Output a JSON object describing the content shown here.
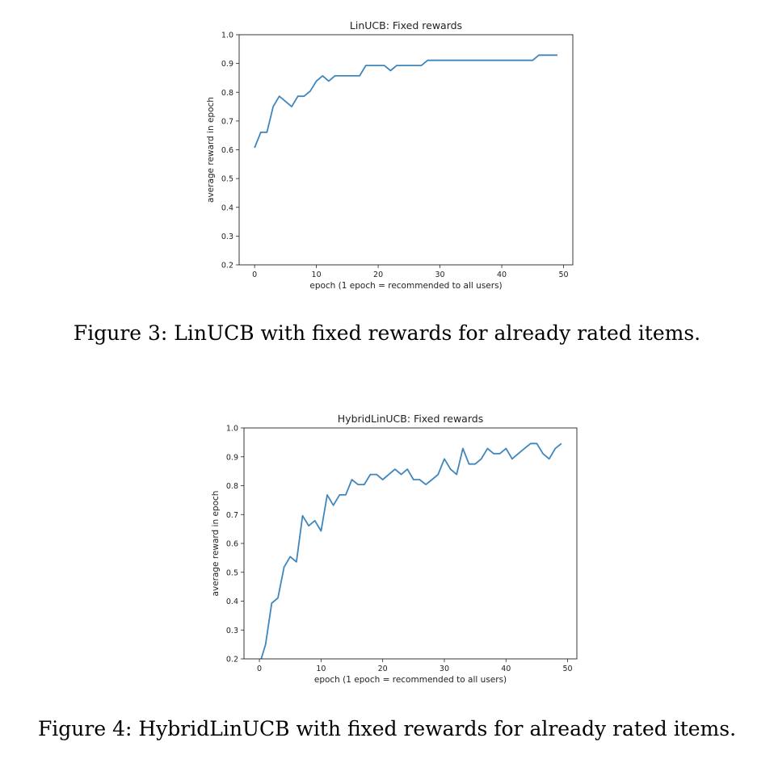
{
  "chart_data": [
    {
      "type": "line",
      "title": "LinUCB: Fixed rewards",
      "xlabel": "epoch (1 epoch = recommended to all users)",
      "ylabel": "average reward in epoch",
      "xlim": [
        -2.5,
        51.5
      ],
      "ylim": [
        0.2,
        1.0
      ],
      "xticks": [
        0,
        10,
        20,
        30,
        40,
        50
      ],
      "yticks": [
        0.2,
        0.3,
        0.4,
        0.5,
        0.6,
        0.7,
        0.8,
        0.9,
        1.0
      ],
      "ytick_labels": [
        "0.2",
        "0.3",
        "0.4",
        "0.5",
        "0.6",
        "0.7",
        "0.8",
        "0.9",
        "1.0"
      ],
      "grid": false,
      "color": "#3f86bd",
      "x": [
        0,
        1,
        2,
        3,
        4,
        5,
        6,
        7,
        8,
        9,
        10,
        11,
        12,
        13,
        14,
        15,
        16,
        17,
        18,
        19,
        20,
        21,
        22,
        23,
        24,
        25,
        26,
        27,
        28,
        29,
        30,
        31,
        32,
        33,
        34,
        35,
        36,
        37,
        38,
        39,
        40,
        41,
        42,
        43,
        44,
        45,
        46,
        47,
        48,
        49
      ],
      "y": [
        0.607,
        0.661,
        0.661,
        0.75,
        0.786,
        0.768,
        0.75,
        0.786,
        0.786,
        0.804,
        0.839,
        0.857,
        0.839,
        0.857,
        0.857,
        0.857,
        0.857,
        0.857,
        0.893,
        0.893,
        0.893,
        0.893,
        0.875,
        0.893,
        0.893,
        0.893,
        0.893,
        0.893,
        0.911,
        0.911,
        0.911,
        0.911,
        0.911,
        0.911,
        0.911,
        0.911,
        0.911,
        0.911,
        0.911,
        0.911,
        0.911,
        0.911,
        0.911,
        0.911,
        0.911,
        0.911,
        0.929,
        0.929,
        0.929,
        0.929
      ]
    },
    {
      "type": "line",
      "title": "HybridLinUCB: Fixed rewards",
      "xlabel": "epoch (1 epoch = recommended to all users)",
      "ylabel": "average reward in epoch",
      "xlim": [
        -2.5,
        51.5
      ],
      "ylim": [
        0.2,
        1.0
      ],
      "xticks": [
        0,
        10,
        20,
        30,
        40,
        50
      ],
      "yticks": [
        0.2,
        0.3,
        0.4,
        0.5,
        0.6,
        0.7,
        0.8,
        0.9,
        1.0
      ],
      "ytick_labels": [
        "0.2",
        "0.3",
        "0.4",
        "0.5",
        "0.6",
        "0.7",
        "0.8",
        "0.9",
        "1.0"
      ],
      "grid": false,
      "color": "#3f86bd",
      "x": [
        0,
        1,
        2,
        3,
        4,
        5,
        6,
        7,
        8,
        9,
        10,
        11,
        12,
        13,
        14,
        15,
        16,
        17,
        18,
        19,
        20,
        21,
        22,
        23,
        24,
        25,
        26,
        27,
        28,
        29,
        30,
        31,
        32,
        33,
        34,
        35,
        36,
        37,
        38,
        39,
        40,
        41,
        42,
        43,
        44,
        45,
        46,
        47,
        48,
        49
      ],
      "y": [
        0.18,
        0.25,
        0.393,
        0.411,
        0.518,
        0.554,
        0.536,
        0.696,
        0.661,
        0.679,
        0.643,
        0.768,
        0.732,
        0.768,
        0.768,
        0.821,
        0.804,
        0.804,
        0.839,
        0.839,
        0.821,
        0.839,
        0.857,
        0.839,
        0.857,
        0.821,
        0.821,
        0.804,
        0.821,
        0.839,
        0.893,
        0.857,
        0.839,
        0.929,
        0.875,
        0.875,
        0.893,
        0.929,
        0.911,
        0.911,
        0.929,
        0.893,
        0.911,
        0.929,
        0.946,
        0.946,
        0.911,
        0.893,
        0.929,
        0.946
      ]
    }
  ],
  "captions": [
    "Figure 3: LinUCB with fixed rewards for already rated items.",
    "Figure 4: HybridLinUCB with fixed rewards for already rated items."
  ]
}
